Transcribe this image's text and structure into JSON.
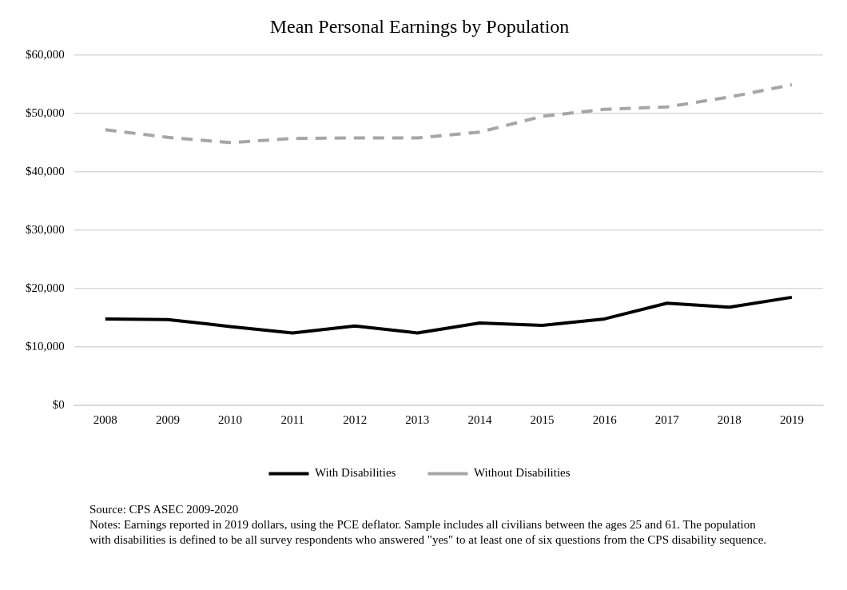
{
  "chart_data": {
    "type": "line",
    "title": "Mean Personal Earnings by Population",
    "categories": [
      "2008",
      "2009",
      "2010",
      "2011",
      "2012",
      "2013",
      "2014",
      "2015",
      "2016",
      "2017",
      "2018",
      "2019"
    ],
    "series": [
      {
        "name": "With Disabilities",
        "color": "#000000",
        "line_style": "solid",
        "values": [
          14800,
          14700,
          13500,
          12400,
          13600,
          12400,
          14100,
          13700,
          14800,
          17500,
          16800,
          18500
        ]
      },
      {
        "name": "Without Disabilities",
        "color": "#a6a6a6",
        "line_style": "dashed",
        "values": [
          47200,
          45900,
          45000,
          45700,
          45800,
          45800,
          46800,
          49500,
          50700,
          51100,
          52800,
          54900
        ]
      }
    ],
    "ylim": [
      0,
      60000
    ],
    "yticks": [
      {
        "value": 0,
        "label": "$0"
      },
      {
        "value": 10000,
        "label": "$10,000"
      },
      {
        "value": 20000,
        "label": "$20,000"
      },
      {
        "value": 30000,
        "label": "$30,000"
      },
      {
        "value": 40000,
        "label": "$40,000"
      },
      {
        "value": 50000,
        "label": "$50,000"
      },
      {
        "value": 60000,
        "label": "$60,000"
      }
    ],
    "grid": "y",
    "legend": "bottom",
    "marker": "none",
    "annotations": [
      "Source: CPS ASEC 2009-2020",
      "Notes: Earnings reported in 2019 dollars, using the PCE deflator. Sample includes all civilians between the ages 25 and 61. The population with disabilities is defined to be all survey respondents who answered \"yes\" to at least one of six questions from the CPS disability sequence."
    ]
  }
}
